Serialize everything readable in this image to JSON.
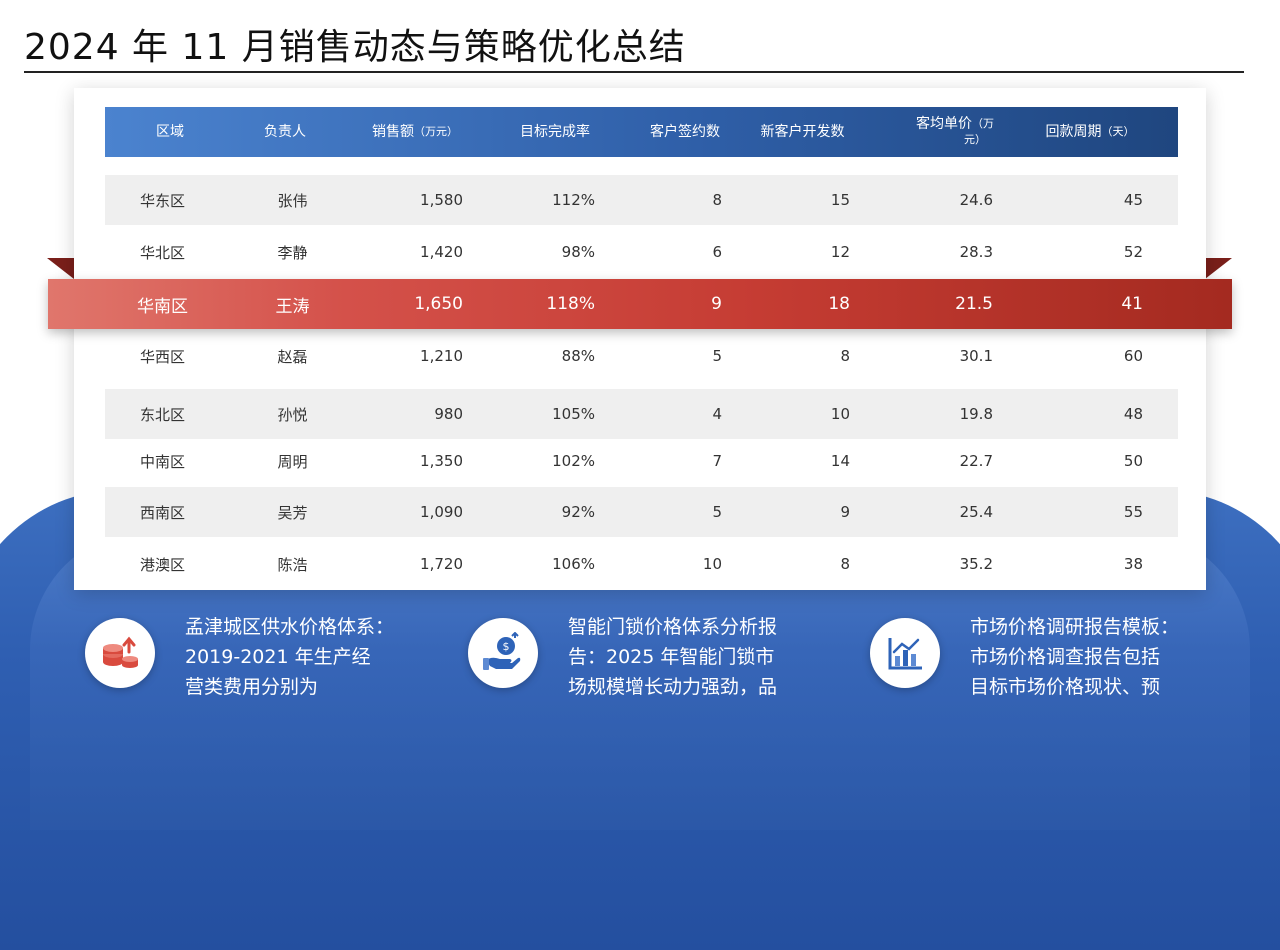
{
  "title": "2024 年 11 月销售动态与策略优化总结",
  "table": {
    "headers": {
      "region": "区域",
      "owner": "负责人",
      "sales": "销售额",
      "sales_unit": "（万元）",
      "target_rate": "目标完成率",
      "signed": "客户签约数",
      "new_clients": "新客户开发数",
      "avg_price": "客均单价",
      "avg_price_unit_a": "（万",
      "avg_price_unit_b": "元）",
      "cycle": "回款周期",
      "cycle_unit": "（天）"
    },
    "rows": [
      {
        "region": "华东区",
        "owner": "张伟",
        "sales": "1,580",
        "rate": "112%",
        "signed": "8",
        "new": "15",
        "avg": "24.6",
        "cycle": "45"
      },
      {
        "region": "华北区",
        "owner": "李静",
        "sales": "1,420",
        "rate": "98%",
        "signed": "6",
        "new": "12",
        "avg": "28.3",
        "cycle": "52"
      },
      {
        "region": "华南区",
        "owner": "王涛",
        "sales": "1,650",
        "rate": "118%",
        "signed": "9",
        "new": "18",
        "avg": "21.5",
        "cycle": "41"
      },
      {
        "region": "华西区",
        "owner": "赵磊",
        "sales": "1,210",
        "rate": "88%",
        "signed": "5",
        "new": "8",
        "avg": "30.1",
        "cycle": "60"
      },
      {
        "region": "东北区",
        "owner": "孙悦",
        "sales": "980",
        "rate": "105%",
        "signed": "4",
        "new": "10",
        "avg": "19.8",
        "cycle": "48"
      },
      {
        "region": "中南区",
        "owner": "周明",
        "sales": "1,350",
        "rate": "102%",
        "signed": "7",
        "new": "14",
        "avg": "22.7",
        "cycle": "50"
      },
      {
        "region": "西南区",
        "owner": "吴芳",
        "sales": "1,090",
        "rate": "92%",
        "signed": "5",
        "new": "9",
        "avg": "25.4",
        "cycle": "55"
      },
      {
        "region": "港澳区",
        "owner": "陈浩",
        "sales": "1,720",
        "rate": "106%",
        "signed": "10",
        "new": "8",
        "avg": "35.2",
        "cycle": "38"
      }
    ]
  },
  "info_items": [
    {
      "icon": "coins-growth-icon",
      "lines": [
        "孟津城区供水价格体系：",
        "2019-2021 年生产经",
        "营类费用分别为"
      ]
    },
    {
      "icon": "money-bag-hand-icon",
      "lines": [
        "智能门锁价格体系分析报",
        "告：2025 年智能门锁市",
        "场规模增长动力强劲，品"
      ]
    },
    {
      "icon": "bar-chart-icon",
      "lines": [
        "市场价格调研报告模板：",
        "市场价格调查报告包括",
        "目标市场价格现状、预"
      ]
    }
  ],
  "colors": {
    "header_start": "#4b83cf",
    "header_end": "#1f467f",
    "highlight_start": "#e0766c",
    "highlight_end": "#a42a20",
    "accent_red": "#d94a3e",
    "accent_blue": "#2e63b8"
  }
}
